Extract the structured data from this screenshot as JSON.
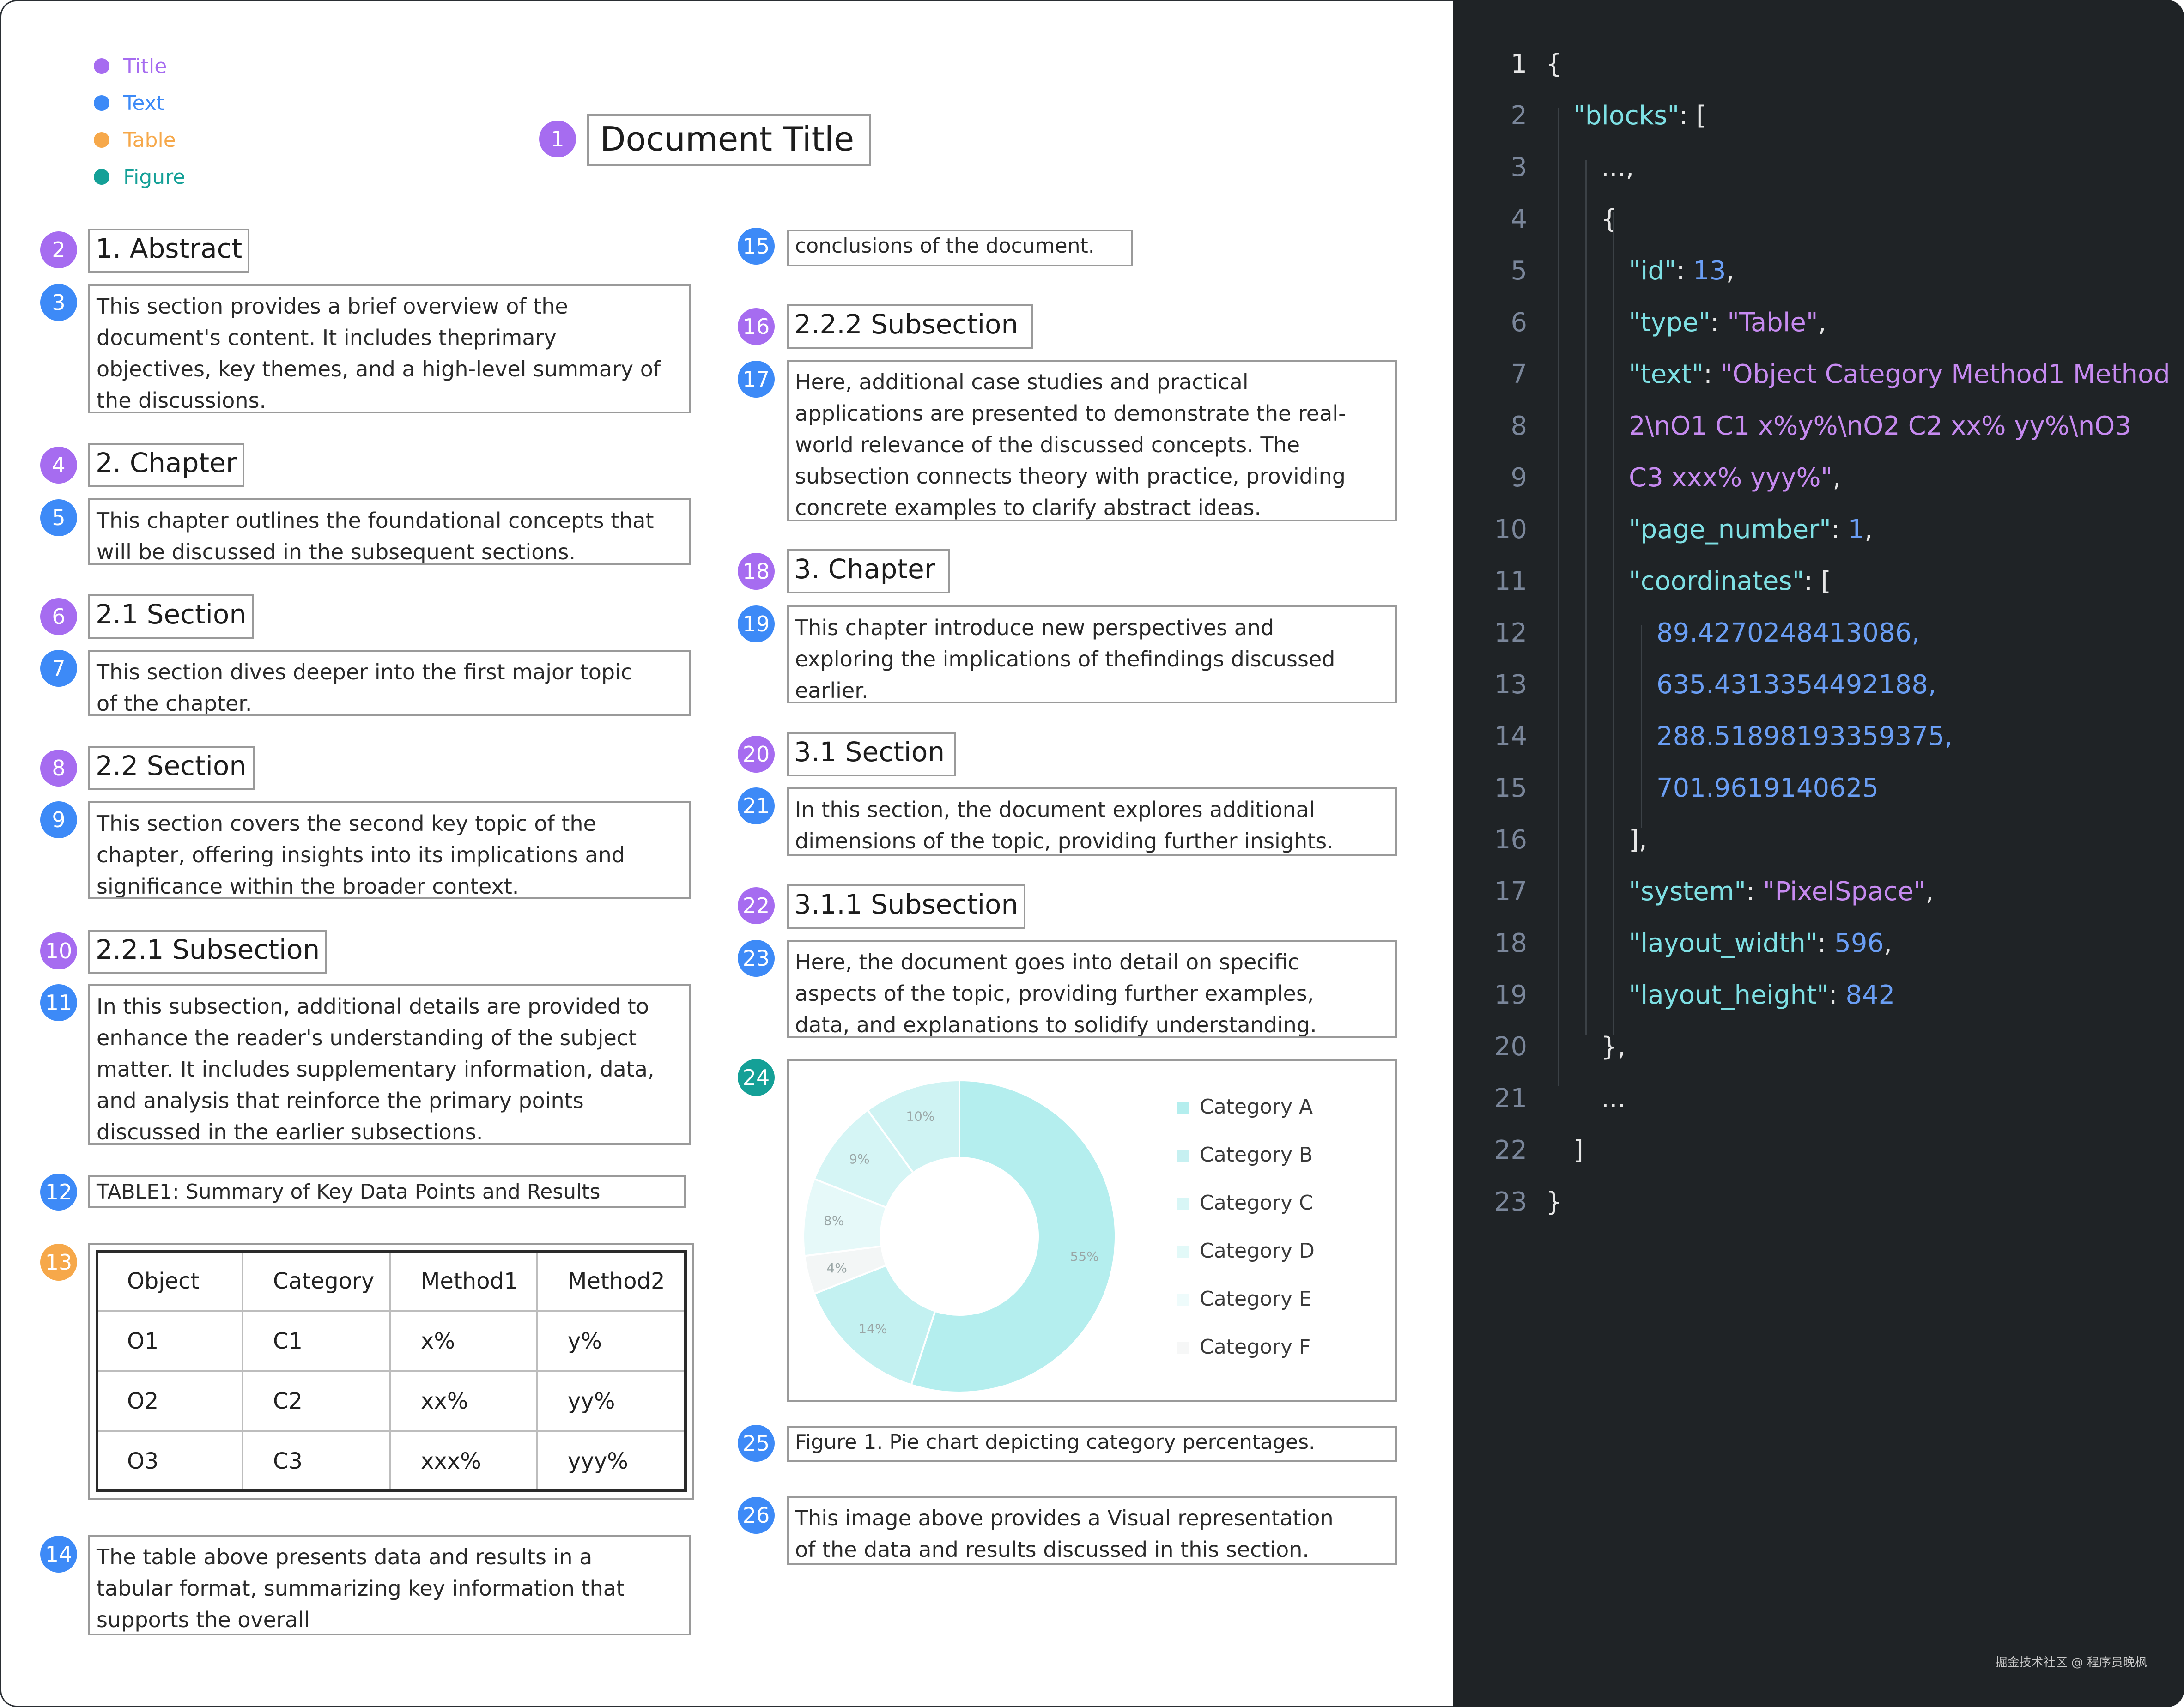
{
  "legend": [
    {
      "label": "Title",
      "color": "#a66cf0"
    },
    {
      "label": "Text",
      "color": "#3d8af7"
    },
    {
      "label": "Table",
      "color": "#f6a84a"
    },
    {
      "label": "Figure",
      "color": "#14a097"
    }
  ],
  "blocks": [
    {
      "n": "1",
      "kind": "title",
      "text": "Document Title"
    },
    {
      "n": "2",
      "kind": "title",
      "text": "1. Abstract"
    },
    {
      "n": "3",
      "kind": "text",
      "text": "This section provides a brief overview of the\ndocument's content. It includes theprimary\nobjectives, key themes, and a high-level summary of\nthe discussions."
    },
    {
      "n": "4",
      "kind": "title",
      "text": "2. Chapter"
    },
    {
      "n": "5",
      "kind": "text",
      "text": "This chapter outlines the foundational concepts that\nwill be discussed in the subsequent sections."
    },
    {
      "n": "6",
      "kind": "title",
      "text": "2.1 Section"
    },
    {
      "n": "7",
      "kind": "text",
      "text": "This section dives deeper into the first major topic\nof the chapter."
    },
    {
      "n": "8",
      "kind": "title",
      "text": "2.2 Section"
    },
    {
      "n": "9",
      "kind": "text",
      "text": "This section covers the second key topic of the\nchapter, offering insights into its implications and\nsignificance within the broader context."
    },
    {
      "n": "10",
      "kind": "title",
      "text": "2.2.1 Subsection"
    },
    {
      "n": "11",
      "kind": "text",
      "text": "In this subsection, additional details are provided to\nenhance the reader's understanding of the subject\nmatter. It includes supplementary information, data,\nand analysis that reinforce the primary points\ndiscussed in the earlier subsections."
    },
    {
      "n": "12",
      "kind": "text",
      "text": "TABLE1: Summary of Key Data Points and Results"
    },
    {
      "n": "13",
      "kind": "table",
      "text": ""
    },
    {
      "n": "14",
      "kind": "text",
      "text": "The table above presents data and results in a\ntabular format, summarizing key information that\nsupports the overall"
    },
    {
      "n": "15",
      "kind": "text",
      "text": "conclusions of the document."
    },
    {
      "n": "16",
      "kind": "title",
      "text": "2.2.2 Subsection"
    },
    {
      "n": "17",
      "kind": "text",
      "text": "Here, additional case studies and practical\napplications are presented to demonstrate the real-\nworld relevance of the discussed concepts. The\nsubsection connects theory with practice, providing\nconcrete examples to clarify abstract ideas."
    },
    {
      "n": "18",
      "kind": "title",
      "text": "3. Chapter"
    },
    {
      "n": "19",
      "kind": "text",
      "text": "This chapter introduce new perspectives and\nexploring the implications of thefindings discussed\nearlier."
    },
    {
      "n": "20",
      "kind": "title",
      "text": "3.1 Section"
    },
    {
      "n": "21",
      "kind": "text",
      "text": "In this section, the document explores additional\ndimensions of the topic, providing further insights."
    },
    {
      "n": "22",
      "kind": "title",
      "text": "3.1.1 Subsection"
    },
    {
      "n": "23",
      "kind": "text",
      "text": "Here, the document goes into detail on specific\naspects of the topic, providing further examples,\ndata, and explanations to solidify understanding."
    },
    {
      "n": "24",
      "kind": "figure",
      "text": ""
    },
    {
      "n": "25",
      "kind": "text",
      "text": "Figure 1. Pie chart depicting category percentages."
    },
    {
      "n": "26",
      "kind": "text",
      "text": "This image above provides a Visual representation\nof the data and results discussed in this section."
    }
  ],
  "table": {
    "rows": [
      [
        "Object",
        "Category",
        "Method1",
        "Method2"
      ],
      [
        "O1",
        "C1",
        "x%",
        "y%"
      ],
      [
        "O2",
        "C2",
        "xx%",
        "yy%"
      ],
      [
        "O3",
        "C3",
        "xxx%",
        "yyy%"
      ]
    ]
  },
  "chart_data": {
    "type": "pie",
    "style": "donut",
    "categories": [
      "Category A",
      "Category B",
      "Category C",
      "Category D",
      "Category E",
      "Category F"
    ],
    "values": [
      55,
      14,
      4,
      8,
      9,
      10
    ],
    "value_labels": [
      "55%",
      "14%",
      "4%",
      "8%",
      "9%",
      "10%"
    ],
    "colors": [
      "#b4eeee",
      "#c3f1f1",
      "#f3f6f6",
      "#e6f9f9",
      "#d5f5f5",
      "#cff3f3"
    ],
    "legend_colors": [
      "#b4eeee",
      "#c6f0f1",
      "#d8f6f6",
      "#e2f9f8",
      "#eefbfb",
      "#f6f7f7"
    ],
    "legend_position": "right"
  },
  "code": {
    "lines": [
      [
        [
          "p",
          "{"
        ]
      ],
      [
        [
          "k",
          "\"blocks\""
        ],
        [
          "p",
          ": ["
        ]
      ],
      [
        [
          "p",
          "...,"
        ]
      ],
      [
        [
          "p",
          "{"
        ]
      ],
      [
        [
          "k",
          "\"id\""
        ],
        [
          "p",
          ": "
        ],
        [
          "n",
          "13"
        ],
        [
          "p",
          ","
        ]
      ],
      [
        [
          "k",
          "\"type\""
        ],
        [
          "p",
          ": "
        ],
        [
          "s",
          "\"Table\""
        ],
        [
          "p",
          ","
        ]
      ],
      [
        [
          "k",
          "\"text\""
        ],
        [
          "p",
          ": "
        ],
        [
          "s",
          "\"Object Category Method1 Method"
        ]
      ],
      [
        [
          "s",
          "2\\nO1 C1 x%y%\\nO2 C2 xx% yy%\\nO3"
        ]
      ],
      [
        [
          "s",
          "C3 xxx% yyy%\""
        ],
        [
          "p",
          ","
        ]
      ],
      [
        [
          "k",
          "\"page_number\""
        ],
        [
          "p",
          ": "
        ],
        [
          "n",
          "1"
        ],
        [
          "p",
          ","
        ]
      ],
      [
        [
          "k",
          "\"coordinates\""
        ],
        [
          "p",
          ": ["
        ]
      ],
      [
        [
          "n",
          "89.4270248413086,"
        ]
      ],
      [
        [
          "n",
          "635.4313354492188,"
        ]
      ],
      [
        [
          "n",
          "288.51898193359375,"
        ]
      ],
      [
        [
          "n",
          "701.9619140625"
        ]
      ],
      [
        [
          "p",
          "],"
        ]
      ],
      [
        [
          "k",
          "\"system\""
        ],
        [
          "p",
          ": "
        ],
        [
          "s",
          "\"PixelSpace\""
        ],
        [
          "p",
          ","
        ]
      ],
      [
        [
          "k",
          "\"layout_width\""
        ],
        [
          "p",
          ": "
        ],
        [
          "n",
          "596"
        ],
        [
          "p",
          ","
        ]
      ],
      [
        [
          "k",
          "\"layout_height\""
        ],
        [
          "p",
          ": "
        ],
        [
          "n",
          "842"
        ]
      ],
      [
        [
          "p",
          "},"
        ]
      ],
      [
        [
          "p",
          "..."
        ]
      ],
      [
        [
          "p",
          "]"
        ]
      ],
      [
        [
          "p",
          "}"
        ]
      ]
    ],
    "active_line": "1"
  },
  "watermark": "掘金技术社区 @ 程序员晚枫"
}
